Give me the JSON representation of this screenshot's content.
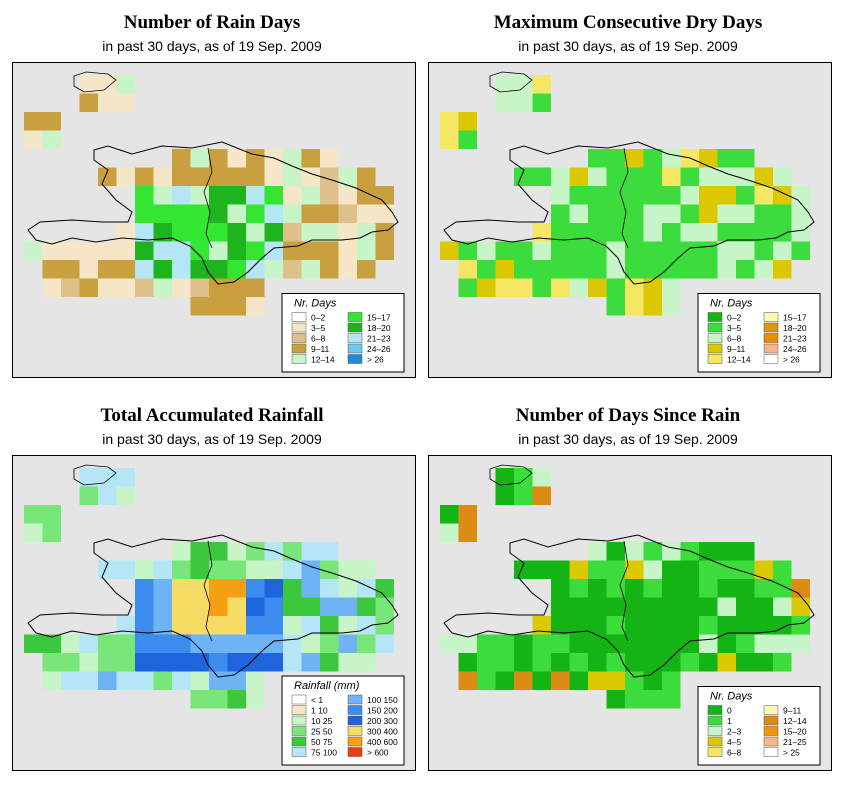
{
  "panels": [
    {
      "id": "rain-days",
      "title": "Number of Rain Days",
      "subtitle": "in past 30 days, as of  19 Sep. 2009",
      "legend_title": "Nr. Days",
      "legend": [
        {
          "label": "0–2",
          "color": "#ffffff"
        },
        {
          "label": "3–5",
          "color": "#f5e6c8"
        },
        {
          "label": "6–8",
          "color": "#ddc08a"
        },
        {
          "label": "9–11",
          "color": "#c8a040"
        },
        {
          "label": "12–14",
          "color": "#c8f5c8"
        },
        {
          "label": "15–17",
          "color": "#32e632"
        },
        {
          "label": "18–20",
          "color": "#1eb41e"
        },
        {
          "label": "21–23",
          "color": "#b4e6f5"
        },
        {
          "label": "24–26",
          "color": "#6ec8f0"
        },
        {
          "label": "> 26",
          "color": "#1e8cd2"
        }
      ]
    },
    {
      "id": "dry-days",
      "title": "Maximum Consecutive Dry Days",
      "subtitle": "in past 30 days, as of  19 Sep. 2009",
      "legend_title": "Nr. Days",
      "legend": [
        {
          "label": "0–2",
          "color": "#14b414"
        },
        {
          "label": "3–5",
          "color": "#3cdc3c"
        },
        {
          "label": "6–8",
          "color": "#c8f5c8"
        },
        {
          "label": "9–11",
          "color": "#dcc800"
        },
        {
          "label": "12–14",
          "color": "#f5e664"
        },
        {
          "label": "15–17",
          "color": "#fff5b4"
        },
        {
          "label": "18–20",
          "color": "#dc9614"
        },
        {
          "label": "21–23",
          "color": "#e68c00"
        },
        {
          "label": "24–26",
          "color": "#f5b48c"
        },
        {
          "label": "> 26",
          "color": "#ffffff"
        }
      ]
    },
    {
      "id": "total-rainfall",
      "title": "Total Accumulated Rainfall",
      "subtitle": "in past 30 days, as of  19 Sep. 2009",
      "legend_title": "Rainfall (mm)",
      "legend": [
        {
          "label": "< 1",
          "color": "#ffffff"
        },
        {
          "label": "1     10",
          "color": "#f5e6c8"
        },
        {
          "label": "10     25",
          "color": "#c8f5c8"
        },
        {
          "label": "25     50",
          "color": "#78e678"
        },
        {
          "label": "50     75",
          "color": "#3cc83c"
        },
        {
          "label": "75   100",
          "color": "#b4e6f5"
        },
        {
          "label": "100   150",
          "color": "#6eb4f5"
        },
        {
          "label": "150   200",
          "color": "#3c8cf0"
        },
        {
          "label": "200   300",
          "color": "#1e64dc"
        },
        {
          "label": "300   400",
          "color": "#f5dc64"
        },
        {
          "label": "400   600",
          "color": "#f5a014"
        },
        {
          "label": "> 600",
          "color": "#f03c14"
        }
      ]
    },
    {
      "id": "days-since-rain",
      "title": "Number of Days Since Rain",
      "subtitle": "in past 30 days, as of  19 Sep. 2009",
      "legend_title": "Nr. Days",
      "legend": [
        {
          "label": "0",
          "color": "#14b414"
        },
        {
          "label": "1",
          "color": "#3cdc3c"
        },
        {
          "label": "2–3",
          "color": "#c8f5c8"
        },
        {
          "label": "4–5",
          "color": "#dcc800"
        },
        {
          "label": "6–8",
          "color": "#f5e664"
        },
        {
          "label": "9–11",
          "color": "#fff5b4"
        },
        {
          "label": "12–14",
          "color": "#dc8c14"
        },
        {
          "label": "15–20",
          "color": "#f09600"
        },
        {
          "label": "21–25",
          "color": "#f5b48c"
        },
        {
          "label": "> 25",
          "color": "#ffffff"
        }
      ]
    }
  ]
}
